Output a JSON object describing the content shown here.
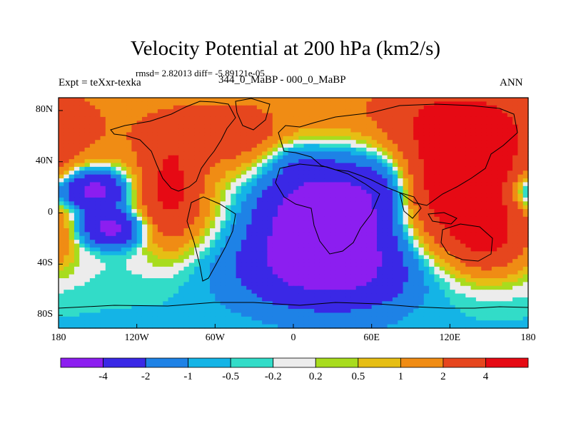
{
  "chart_data": {
    "type": "heatmap",
    "title": "Velocity Potential at 200 hPa (km2/s)",
    "stats_text": "rmsd= 2.82013 diff= -5.89121e-05",
    "rmsd": 2.82013,
    "diff": -5.89121e-05,
    "experiment_label": "Expt = teXxr-texka",
    "difference_label": "344_0_MaBP - 000_0_MaBP",
    "season": "ANN",
    "xlim": [
      -180,
      180
    ],
    "ylim": [
      -90,
      90
    ],
    "x_ticks": [
      {
        "value": -180,
        "label": "180"
      },
      {
        "value": -120,
        "label": "120W"
      },
      {
        "value": -60,
        "label": "60W"
      },
      {
        "value": 0,
        "label": "0"
      },
      {
        "value": 60,
        "label": "60E"
      },
      {
        "value": 120,
        "label": "120E"
      },
      {
        "value": 180,
        "label": "180"
      }
    ],
    "y_ticks": [
      {
        "value": 80,
        "label": "80N"
      },
      {
        "value": 40,
        "label": "40N"
      },
      {
        "value": 0,
        "label": "0"
      },
      {
        "value": -40,
        "label": "40S"
      },
      {
        "value": -80,
        "label": "80S"
      }
    ],
    "contour_levels": [
      -4,
      -2,
      -1,
      -0.5,
      -0.2,
      0.2,
      0.5,
      1,
      2,
      4
    ],
    "colorbar_labels": [
      "-4",
      "-2",
      "-1",
      "-0.5",
      "-0.2",
      "0.2",
      "0.5",
      "1",
      "2",
      "4"
    ],
    "colors": [
      "#8c1ef0",
      "#3a28e6",
      "#1e82e6",
      "#14b4e6",
      "#32dcc8",
      "#ececec",
      "#a8dc1e",
      "#e6be14",
      "#f08c14",
      "#e6461e",
      "#e60a14"
    ],
    "field_features": [
      {
        "lon": 10,
        "lat": -5,
        "value": -5.5,
        "sx": 32,
        "sy": 32
      },
      {
        "lon": 55,
        "lat": 2,
        "value": -3.5,
        "sx": 28,
        "sy": 38
      },
      {
        "lon": 25,
        "lat": -48,
        "value": -2.5,
        "sx": 55,
        "sy": 20
      },
      {
        "lon": 75,
        "lat": 20,
        "value": -1.5,
        "sx": 15,
        "sy": 18
      },
      {
        "lon": 130,
        "lat": 25,
        "value": 6.0,
        "sx": 38,
        "sy": 38
      },
      {
        "lon": 150,
        "lat": -25,
        "value": 2.5,
        "sx": 22,
        "sy": 18
      },
      {
        "lon": -95,
        "lat": 15,
        "value": 4.0,
        "sx": 18,
        "sy": 30
      },
      {
        "lon": -50,
        "lat": 60,
        "value": 2.0,
        "sx": 30,
        "sy": 18
      },
      {
        "lon": 120,
        "lat": 80,
        "value": 1.5,
        "sx": 60,
        "sy": 15
      },
      {
        "lon": -155,
        "lat": 18,
        "value": -6.0,
        "sx": 20,
        "sy": 12
      },
      {
        "lon": -140,
        "lat": -12,
        "value": -5.0,
        "sx": 18,
        "sy": 10
      },
      {
        "lon": 0,
        "lat": 45,
        "value": -1.0,
        "sx": 15,
        "sy": 12
      },
      {
        "lon": 175,
        "lat": 15,
        "value": -1.5,
        "sx": 10,
        "sy": 10
      }
    ],
    "field_background": [
      {
        "lat": 90,
        "value": 1.2
      },
      {
        "lat": 60,
        "value": 1.5
      },
      {
        "lat": 35,
        "value": 0.8
      },
      {
        "lat": 0,
        "value": 0.5
      },
      {
        "lat": -35,
        "value": -0.2
      },
      {
        "lat": -60,
        "value": -0.4
      },
      {
        "lat": -90,
        "value": -0.6
      }
    ]
  }
}
